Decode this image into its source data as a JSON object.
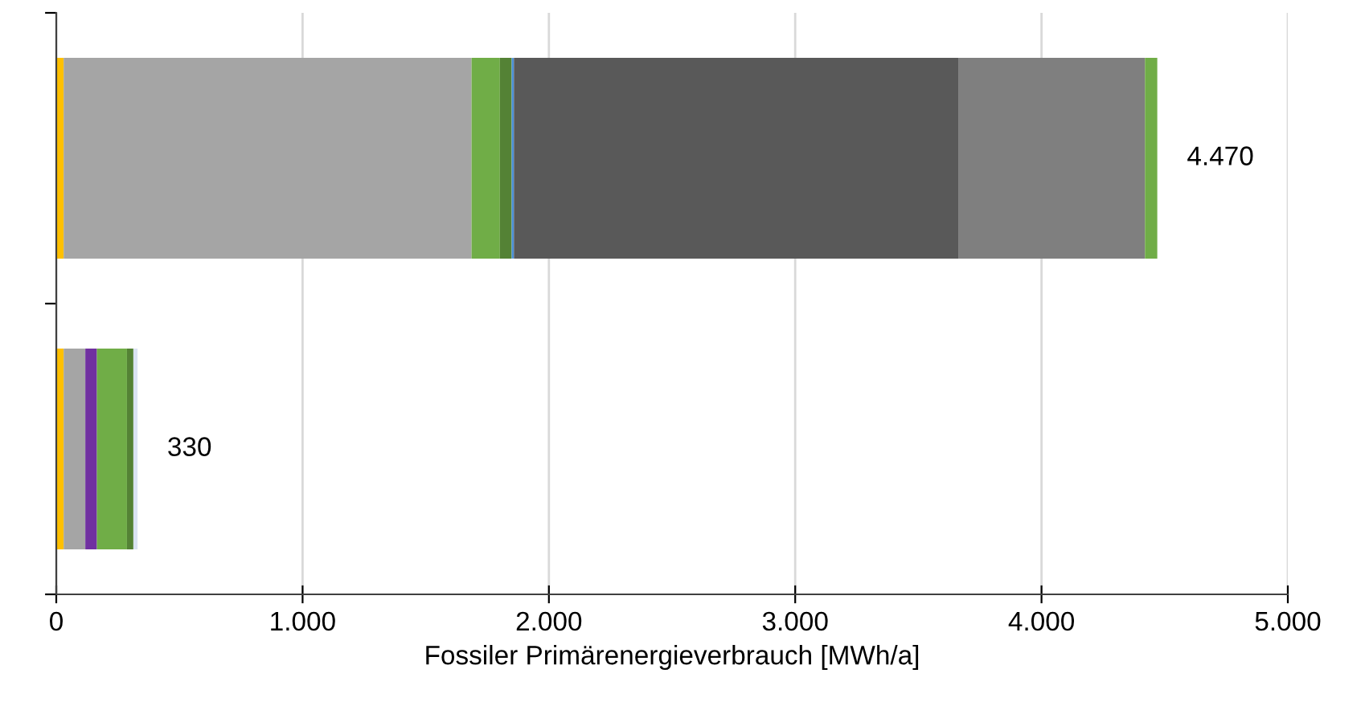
{
  "chart_data": {
    "type": "bar",
    "orientation": "horizontal",
    "stacked": true,
    "categories": [
      null,
      null
    ],
    "series": [
      {
        "color": "#ffc000",
        "values": [
          30,
          30
        ]
      },
      {
        "color": "#a5a5a5",
        "values": [
          1656,
          88
        ]
      },
      {
        "color": "#7030a0",
        "values": [
          null,
          47
        ]
      },
      {
        "color": "#70ad47",
        "values": [
          115,
          122
        ]
      },
      {
        "color": "#548235",
        "values": [
          48,
          26
        ]
      },
      {
        "color": "#4a90d9",
        "values": [
          9,
          null
        ]
      },
      {
        "color": "#dae3f3",
        "values": [
          null,
          17
        ]
      },
      {
        "color": "#595959",
        "values": [
          1804,
          null
        ]
      },
      {
        "color": "#7f7f7f",
        "values": [
          758,
          null
        ]
      },
      {
        "color": "#70ad47",
        "values": [
          50,
          null
        ]
      }
    ],
    "totals": [
      "4.470",
      "330"
    ],
    "xlim": [
      0,
      5000
    ],
    "xticks": [
      {
        "value": 0,
        "label": "0"
      },
      {
        "value": 1000,
        "label": "1.000"
      },
      {
        "value": 2000,
        "label": "2.000"
      },
      {
        "value": 3000,
        "label": "3.000"
      },
      {
        "value": 4000,
        "label": "4.000"
      },
      {
        "value": 5000,
        "label": "5.000"
      }
    ],
    "xlabel": "Fossiler Primärenergieverbrauch [MWh/a]",
    "grid": "x",
    "legend": false
  }
}
